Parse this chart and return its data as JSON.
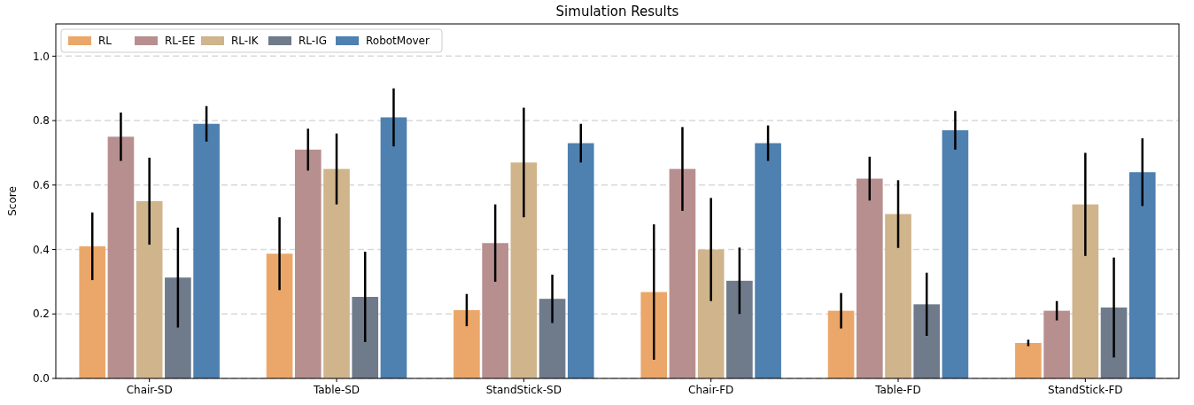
{
  "chart_data": {
    "type": "bar",
    "title": "Simulation Results",
    "ylabel": "Score",
    "categories": [
      "Chair-SD",
      "Table-SD",
      "StandStick-SD",
      "Chair-FD",
      "Table-FD",
      "StandStick-FD"
    ],
    "series": [
      {
        "name": "RL",
        "color": "#eba769",
        "values": [
          0.41,
          0.387,
          0.212,
          0.268,
          0.21,
          0.11
        ],
        "errors": [
          0.105,
          0.113,
          0.05,
          0.21,
          0.055,
          0.01
        ]
      },
      {
        "name": "RL-EE",
        "color": "#b78f8f",
        "values": [
          0.75,
          0.71,
          0.42,
          0.65,
          0.62,
          0.21
        ],
        "errors": [
          0.075,
          0.065,
          0.12,
          0.13,
          0.068,
          0.03
        ]
      },
      {
        "name": "RL-IK",
        "color": "#cfb48c",
        "values": [
          0.55,
          0.65,
          0.67,
          0.4,
          0.51,
          0.54
        ],
        "errors": [
          0.135,
          0.11,
          0.17,
          0.16,
          0.105,
          0.16
        ]
      },
      {
        "name": "RL-IG",
        "color": "#6f7b8a",
        "values": [
          0.313,
          0.253,
          0.247,
          0.303,
          0.23,
          0.22
        ],
        "errors": [
          0.155,
          0.14,
          0.075,
          0.103,
          0.098,
          0.155
        ]
      },
      {
        "name": "RobotMover",
        "color": "#4e80b0",
        "values": [
          0.79,
          0.81,
          0.73,
          0.73,
          0.77,
          0.64
        ],
        "errors": [
          0.055,
          0.09,
          0.06,
          0.055,
          0.06,
          0.105
        ]
      }
    ],
    "ylim": [
      0,
      1.1
    ],
    "yticks": [
      {
        "value": 0,
        "label": "0.0"
      },
      {
        "value": 0.2,
        "label": "0.2"
      },
      {
        "value": 0.4,
        "label": "0.4"
      },
      {
        "value": 0.6,
        "label": "0.6"
      },
      {
        "value": 0.8,
        "label": "0.8"
      },
      {
        "value": 1,
        "label": "1.0"
      }
    ],
    "grid": "y",
    "legend": "top left"
  }
}
